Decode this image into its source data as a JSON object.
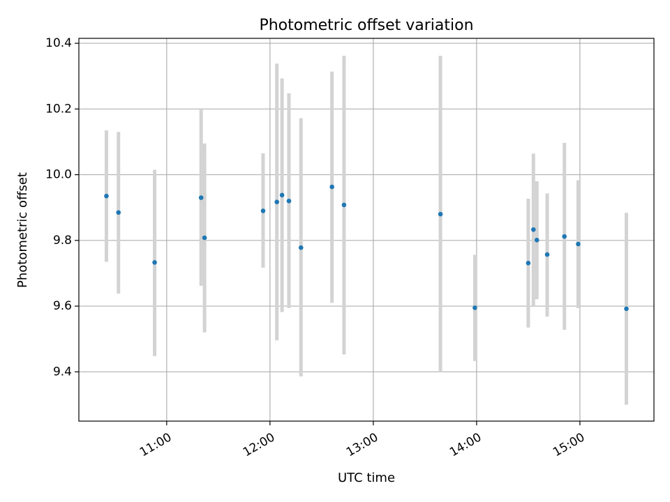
{
  "chart_data": {
    "type": "scatter",
    "title": "Photometric offset variation",
    "xlabel": "UTC time",
    "ylabel": "Photometric offset",
    "grid": true,
    "x_axis": {
      "type": "time",
      "ticks": [
        "11:00",
        "12:00",
        "13:00",
        "14:00",
        "15:00"
      ],
      "range": [
        "10:09",
        "15:43"
      ]
    },
    "y_axis": {
      "ticks": [
        "9.4",
        "9.6",
        "9.8",
        "10.0",
        "10.2",
        "10.4"
      ],
      "range": [
        9.25,
        10.415
      ]
    },
    "colors": {
      "points": "#1f77b4",
      "error_bars": "#d3d3d3",
      "grid": "#b0b0b0"
    },
    "series": [
      {
        "points": [
          {
            "x": "10:25",
            "y": 9.935,
            "err_low": 9.735,
            "err_high": 10.135
          },
          {
            "x": "10:32",
            "y": 9.885,
            "err_low": 9.638,
            "err_high": 10.13
          },
          {
            "x": "10:53",
            "y": 9.733,
            "err_low": 9.448,
            "err_high": 10.015
          },
          {
            "x": "11:20",
            "y": 9.93,
            "err_low": 9.662,
            "err_high": 10.198
          },
          {
            "x": "11:22",
            "y": 9.808,
            "err_low": 9.52,
            "err_high": 10.095
          },
          {
            "x": "11:56",
            "y": 9.89,
            "err_low": 9.717,
            "err_high": 10.065
          },
          {
            "x": "12:04",
            "y": 9.917,
            "err_low": 9.496,
            "err_high": 10.338
          },
          {
            "x": "12:07",
            "y": 9.938,
            "err_low": 9.582,
            "err_high": 10.293
          },
          {
            "x": "12:11",
            "y": 9.92,
            "err_low": 9.594,
            "err_high": 10.248
          },
          {
            "x": "12:18",
            "y": 9.778,
            "err_low": 9.386,
            "err_high": 10.172
          },
          {
            "x": "12:36",
            "y": 9.963,
            "err_low": 9.61,
            "err_high": 10.314
          },
          {
            "x": "12:43",
            "y": 9.908,
            "err_low": 9.453,
            "err_high": 10.362
          },
          {
            "x": "13:39",
            "y": 9.88,
            "err_low": 9.4,
            "err_high": 10.362
          },
          {
            "x": "13:59",
            "y": 9.595,
            "err_low": 9.433,
            "err_high": 9.756
          },
          {
            "x": "14:30",
            "y": 9.731,
            "err_low": 9.535,
            "err_high": 9.927
          },
          {
            "x": "14:33",
            "y": 9.833,
            "err_low": 9.602,
            "err_high": 10.064
          },
          {
            "x": "14:35",
            "y": 9.801,
            "err_low": 9.621,
            "err_high": 9.98
          },
          {
            "x": "14:41",
            "y": 9.757,
            "err_low": 9.568,
            "err_high": 9.943
          },
          {
            "x": "14:51",
            "y": 9.812,
            "err_low": 9.528,
            "err_high": 10.097
          },
          {
            "x": "14:59",
            "y": 9.789,
            "err_low": 9.594,
            "err_high": 9.983
          },
          {
            "x": "15:27",
            "y": 9.592,
            "err_low": 9.3,
            "err_high": 9.884
          }
        ]
      }
    ]
  }
}
